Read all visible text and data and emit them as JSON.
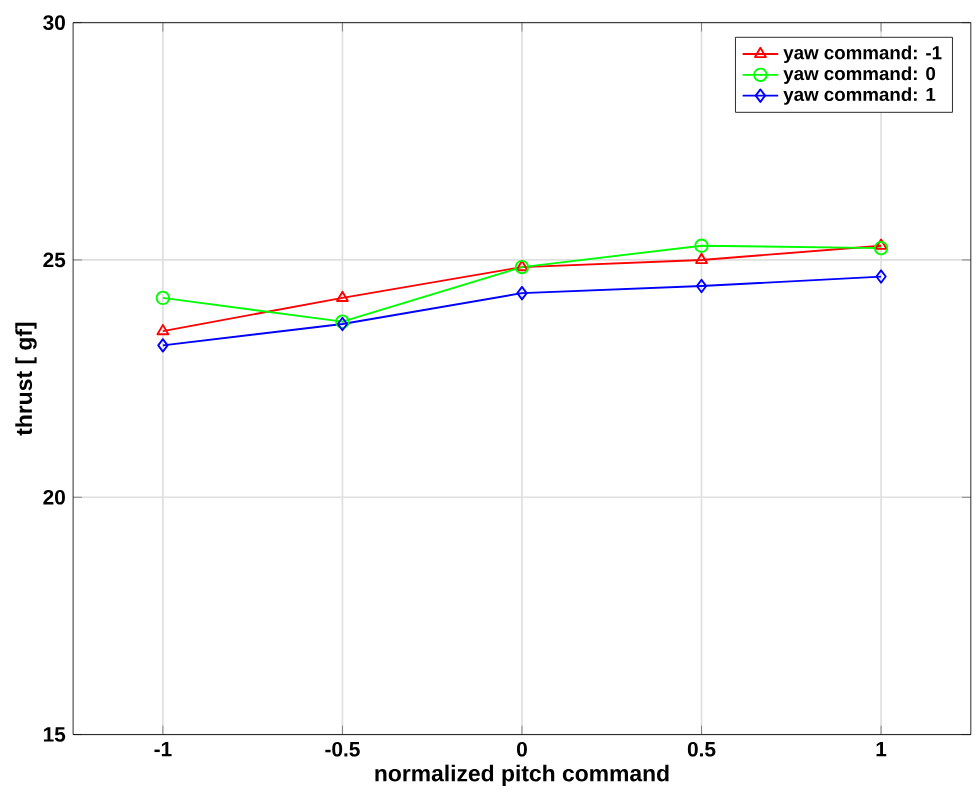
{
  "chart_data": {
    "type": "line",
    "xlabel": "normalized pitch command",
    "ylabel": "thrust [ gf]",
    "x": [
      -1,
      -0.5,
      0,
      0.5,
      1
    ],
    "series": [
      {
        "name": "yaw command: -1",
        "color": "#ff0000",
        "marker": "triangle",
        "values": [
          23.5,
          24.2,
          24.85,
          25.0,
          25.3
        ]
      },
      {
        "name": "yaw command: 0",
        "color": "#00ff00",
        "marker": "circle",
        "values": [
          24.2,
          23.7,
          24.85,
          25.3,
          25.25
        ]
      },
      {
        "name": "yaw command: 1",
        "color": "#0000ff",
        "marker": "diamond",
        "values": [
          23.2,
          23.65,
          24.3,
          24.45,
          24.65
        ]
      }
    ],
    "xlim": [
      -1.25,
      1.25
    ],
    "xticks": [
      -1,
      -0.5,
      0,
      0.5,
      1
    ],
    "ylim": [
      15,
      30
    ],
    "yticks": [
      15,
      20,
      25,
      30
    ],
    "grid": true,
    "legend": "top right"
  }
}
